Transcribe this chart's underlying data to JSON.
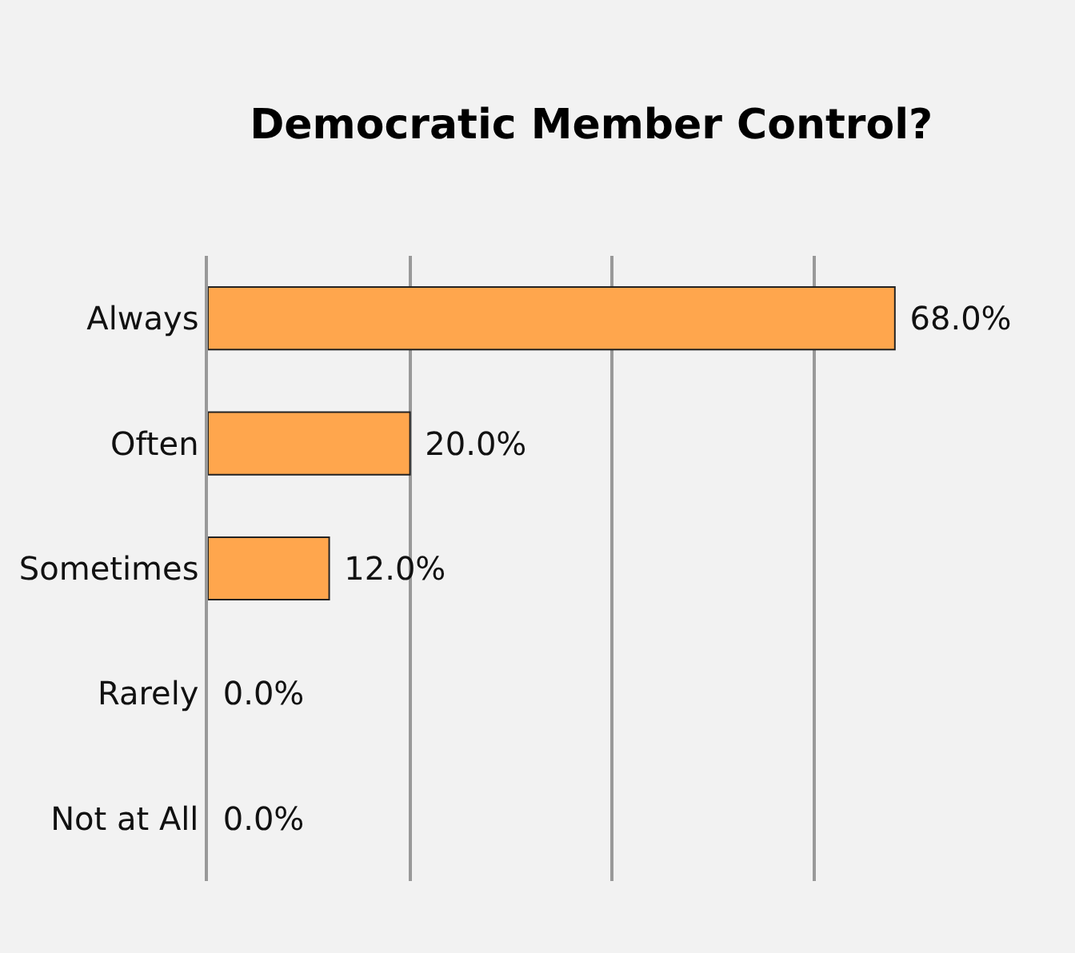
{
  "chart_data": {
    "type": "bar",
    "orientation": "horizontal",
    "title": "Democratic Member Control?",
    "categories": [
      "Always",
      "Often",
      "Sometimes",
      "Rarely",
      "Not at All"
    ],
    "values": [
      68,
      20,
      12,
      0,
      0
    ],
    "value_labels": [
      "68.0%",
      "20.0%",
      "12.0%",
      "0.0%",
      "0.0%"
    ],
    "color": "#ffa64d",
    "tick_labels": "y",
    "grid": "x"
  }
}
